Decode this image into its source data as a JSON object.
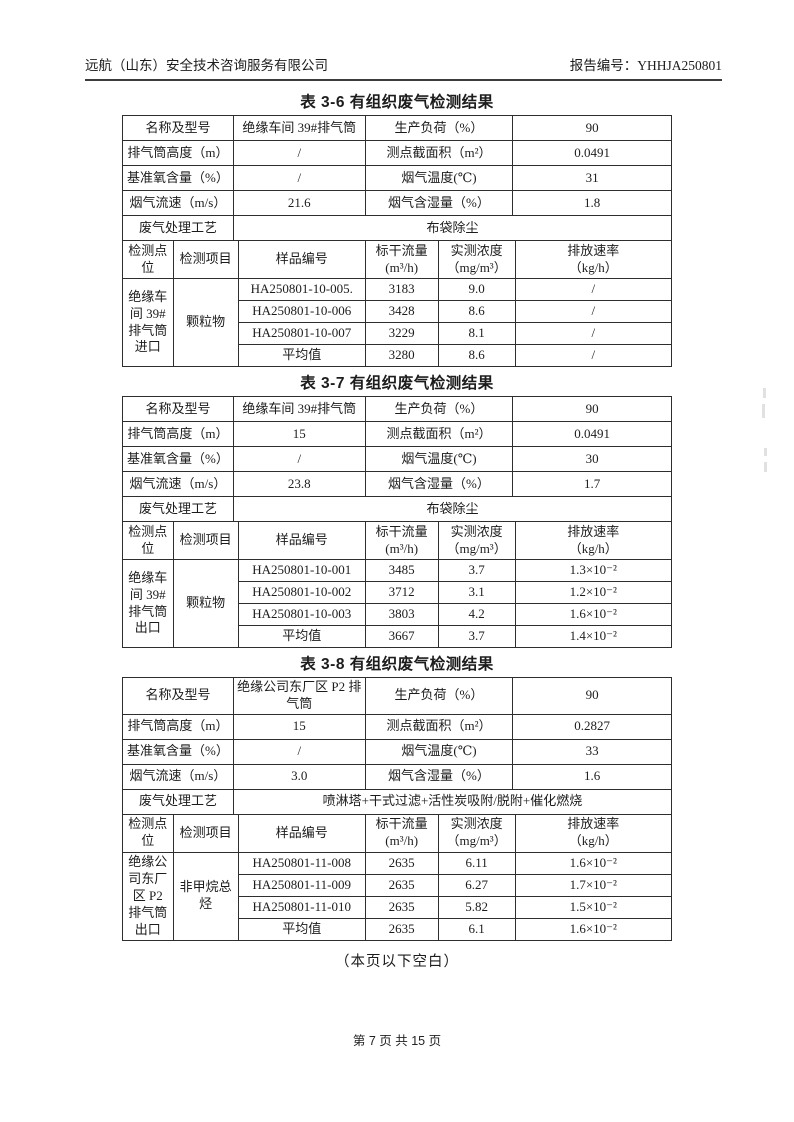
{
  "header": {
    "company": "远航（山东）安全技术咨询服务有限公司",
    "report_label": "报告编号：YHHJA250801"
  },
  "tables": [
    {
      "title": "表 3-6 有组织废气检测结果",
      "info_rows": [
        [
          "名称及型号",
          "绝缘车间 39#排气筒",
          "生产负荷（%）",
          "90"
        ],
        [
          "排气筒高度（m）",
          "/",
          "测点截面积（m²）",
          "0.0491"
        ],
        [
          "基准氧含量（%）",
          "/",
          "烟气温度(℃)",
          "31"
        ],
        [
          "烟气流速（m/s）",
          "21.6",
          "烟气含湿量（%）",
          "1.8"
        ]
      ],
      "process_label": "废气处理工艺",
      "process_value": "布袋除尘",
      "det_headers": [
        "检测点位",
        "检测项目",
        "样品编号",
        "标干流量\n(m³/h)",
        "实测浓度\n（mg/m³）",
        "排放速率\n（kg/h）"
      ],
      "point": "绝缘车间 39#排气筒进口",
      "item": "颗粒物",
      "det_rows": [
        [
          "HA250801-10-005.",
          "3183",
          "9.0",
          "/"
        ],
        [
          "HA250801-10-006",
          "3428",
          "8.6",
          "/"
        ],
        [
          "HA250801-10-007",
          "3229",
          "8.1",
          "/"
        ],
        [
          "平均值",
          "3280",
          "8.6",
          "/"
        ]
      ]
    },
    {
      "title": "表 3-7 有组织废气检测结果",
      "info_rows": [
        [
          "名称及型号",
          "绝缘车间 39#排气筒",
          "生产负荷（%）",
          "90"
        ],
        [
          "排气筒高度（m）",
          "15",
          "测点截面积（m²）",
          "0.0491"
        ],
        [
          "基准氧含量（%）",
          "/",
          "烟气温度(℃)",
          "30"
        ],
        [
          "烟气流速（m/s）",
          "23.8",
          "烟气含湿量（%）",
          "1.7"
        ]
      ],
      "process_label": "废气处理工艺",
      "process_value": "布袋除尘",
      "det_headers": [
        "检测点位",
        "检测项目",
        "样品编号",
        "标干流量\n(m³/h)",
        "实测浓度\n（mg/m³）",
        "排放速率\n（kg/h）"
      ],
      "point": "绝缘车间 39#排气筒出口",
      "item": "颗粒物",
      "det_rows": [
        [
          "HA250801-10-001",
          "3485",
          "3.7",
          "1.3×10⁻²"
        ],
        [
          "HA250801-10-002",
          "3712",
          "3.1",
          "1.2×10⁻²"
        ],
        [
          "HA250801-10-003",
          "3803",
          "4.2",
          "1.6×10⁻²"
        ],
        [
          "平均值",
          "3667",
          "3.7",
          "1.4×10⁻²"
        ]
      ]
    },
    {
      "title": "表 3-8 有组织废气检测结果",
      "info_rows": [
        [
          "名称及型号",
          "绝缘公司东厂区 P2 排气筒",
          "生产负荷（%）",
          "90"
        ],
        [
          "排气筒高度（m）",
          "15",
          "测点截面积（m²）",
          "0.2827"
        ],
        [
          "基准氧含量（%）",
          "/",
          "烟气温度(℃)",
          "33"
        ],
        [
          "烟气流速（m/s）",
          "3.0",
          "烟气含湿量（%）",
          "1.6"
        ]
      ],
      "process_label": "废气处理工艺",
      "process_value": "喷淋塔+干式过滤+活性炭吸附/脱附+催化燃烧",
      "det_headers": [
        "检测点位",
        "检测项目",
        "样品编号",
        "标干流量\n(m³/h)",
        "实测浓度\n（mg/m³）",
        "排放速率\n（kg/h）"
      ],
      "point": "绝缘公司东厂区 P2 排气筒出口",
      "item": "非甲烷总烃",
      "det_rows": [
        [
          "HA250801-11-008",
          "2635",
          "6.11",
          "1.6×10⁻²"
        ],
        [
          "HA250801-11-009",
          "2635",
          "6.27",
          "1.7×10⁻²"
        ],
        [
          "HA250801-11-010",
          "2635",
          "5.82",
          "1.5×10⁻²"
        ],
        [
          "平均值",
          "2635",
          "6.1",
          "1.6×10⁻²"
        ]
      ]
    }
  ],
  "blank_note": "（本页以下空白）",
  "footer": {
    "page_info": "第 7 页 共 15 页"
  }
}
